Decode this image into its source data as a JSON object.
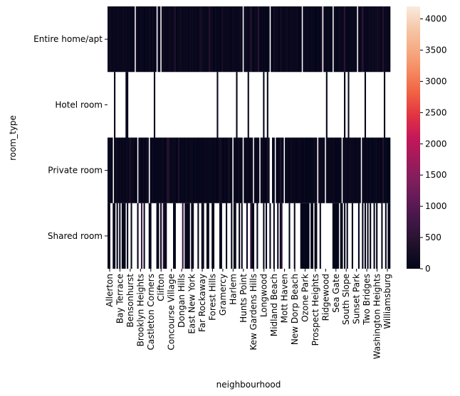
{
  "chart_data": {
    "type": "heatmap",
    "title": "",
    "xlabel": "neighbourhood",
    "ylabel": "room_type",
    "rows": [
      "Entire home/apt",
      "Hotel room",
      "Private room",
      "Shared room"
    ],
    "x_tick_labels": [
      "Allerton",
      "Bay Terrace",
      "Bensonhurst",
      "Brooklyn Heights",
      "Castleton Corners",
      "Clifton",
      "Concourse Village",
      "Dongan Hills",
      "East New York",
      "Far Rockaway",
      "Forest Hills",
      "Gramercy",
      "Harlem",
      "Hunts Point",
      "Kew Gardens Hills",
      "Longwood",
      "Midland Beach",
      "Mott Haven",
      "New Dorp Beach",
      "Ozone Park",
      "Prospect Heights",
      "Ridgewood",
      "Sea Gate",
      "South Slope",
      "Sunset Park",
      "Two Bridges",
      "Washington Heights",
      "Williamsburg"
    ],
    "colorbar": {
      "min": 0,
      "max": 4200,
      "ticks": [
        0,
        500,
        1000,
        1500,
        2000,
        2500,
        3000,
        3500,
        4000
      ]
    },
    "notes_visible": "Dense heatmap: most cells near 0 (dark); many Hotel room and Shared room cells missing (white)."
  },
  "colors": {
    "colormap": [
      "#03051a",
      "#1c1127",
      "#3b1642",
      "#5c1a55",
      "#7e1e5c",
      "#a11a5b",
      "#c3185a",
      "#e13342",
      "#f06043",
      "#f58860",
      "#f6aa82",
      "#f6c8a9",
      "#faebdd"
    ]
  }
}
